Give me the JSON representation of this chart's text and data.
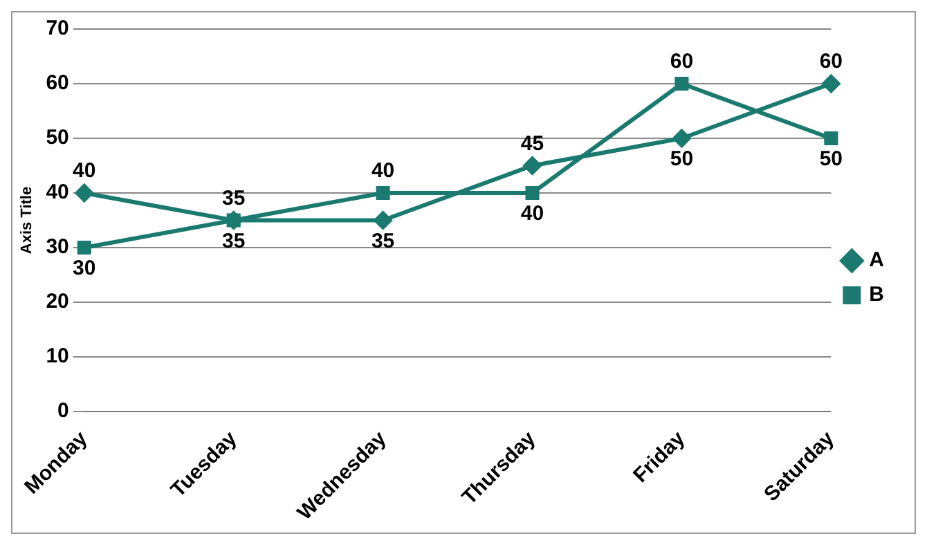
{
  "chart_data": {
    "type": "line",
    "ylabel": "Axis Title",
    "categories": [
      "Monday",
      "Tuesday",
      "Wednesday",
      "Thursday",
      "Friday",
      "Saturday"
    ],
    "series": [
      {
        "name": "A",
        "color": "#1b7a70",
        "marker": "diamond",
        "values": [
          40,
          35,
          35,
          45,
          50,
          60
        ]
      },
      {
        "name": "B",
        "color": "#1b7a70",
        "marker": "square",
        "values": [
          30,
          35,
          40,
          40,
          60,
          50
        ]
      }
    ],
    "ylim": [
      0,
      70
    ],
    "yticks": [
      0,
      10,
      20,
      30,
      40,
      50,
      60,
      70
    ],
    "grid": "y",
    "legend": "right",
    "data_labels": true,
    "line_style": "solid"
  }
}
